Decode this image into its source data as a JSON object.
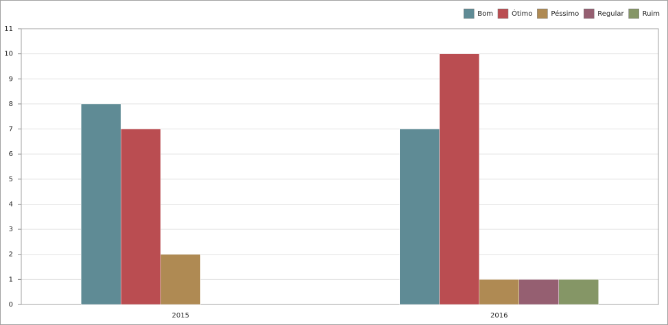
{
  "chart_data": {
    "type": "bar",
    "categories": [
      "2015",
      "2016"
    ],
    "series": [
      {
        "name": "Bom",
        "color": "#5f8b95",
        "values": [
          8,
          7
        ]
      },
      {
        "name": "Ótimo",
        "color": "#ba4d51",
        "values": [
          7,
          10
        ]
      },
      {
        "name": "Péssimo",
        "color": "#af8a53",
        "values": [
          2,
          1
        ]
      },
      {
        "name": "Regular",
        "color": "#955f71",
        "values": [
          null,
          1
        ]
      },
      {
        "name": "Ruim",
        "color": "#859666",
        "values": [
          null,
          1
        ]
      }
    ],
    "ylim": [
      0,
      11
    ],
    "yticks": [
      0,
      1,
      2,
      3,
      4,
      5,
      6,
      7,
      8,
      9,
      10,
      11
    ],
    "grid": true,
    "legend": "top-right"
  }
}
